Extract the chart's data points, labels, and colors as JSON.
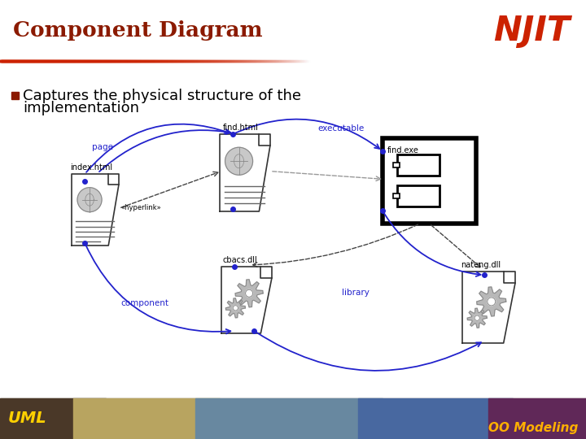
{
  "title": "Component Diagram",
  "title_color": "#8B1A00",
  "njit_text": "NJIT",
  "njit_color": "#CC2200",
  "bullet_text_line1": "Captures the physical structure of the",
  "bullet_text_line2": "implementation",
  "bullet_color": "#8B1A00",
  "text_color": "#000000",
  "bg_color": "#FFFFFF",
  "header_line_color": "#CC2200",
  "uml_text": "UML",
  "oo_text": "OO Modeling",
  "diagram_blue": "#2222CC",
  "diagram_black": "#000000"
}
